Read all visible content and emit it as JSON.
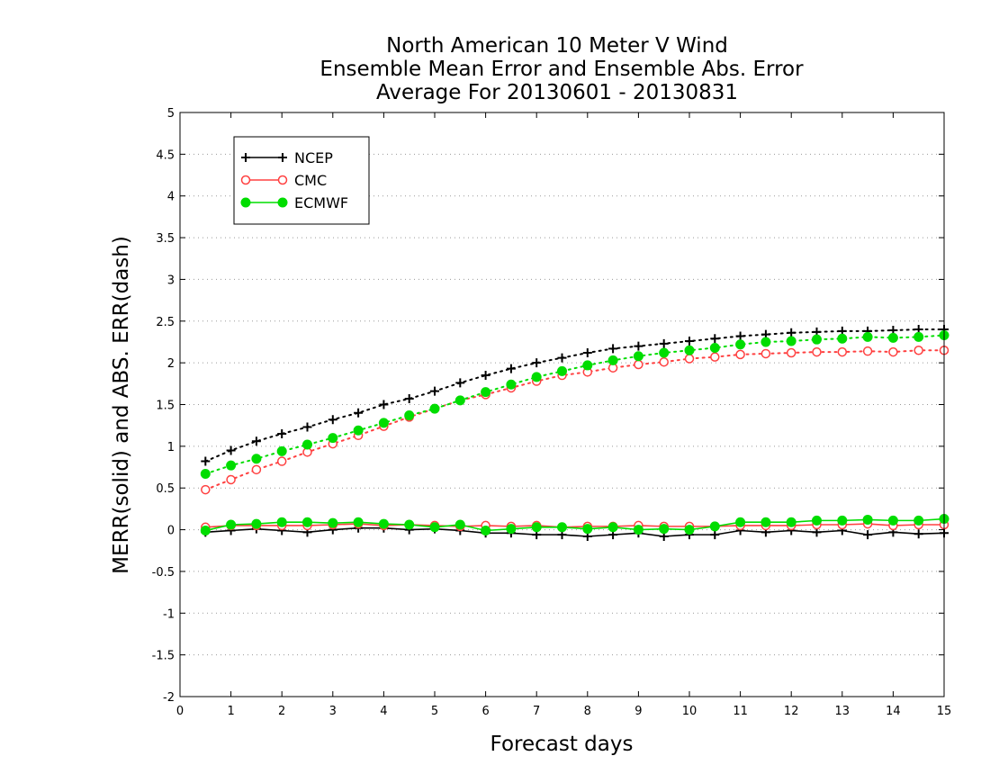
{
  "chart_data": {
    "type": "line",
    "title": [
      "North American 10 Meter V Wind",
      "Ensemble Mean Error and Ensemble Abs. Error",
      "Average For 20130601 - 20130831"
    ],
    "xlabel": "Forecast days",
    "ylabel": "MERR(solid) and ABS. ERR(dash)",
    "xlim": [
      0,
      15
    ],
    "ylim": [
      -2,
      5
    ],
    "xticks": [
      0,
      1,
      2,
      3,
      4,
      5,
      6,
      7,
      8,
      9,
      10,
      11,
      12,
      13,
      14,
      15
    ],
    "yticks": [
      -2,
      -1.5,
      -1,
      -0.5,
      0,
      0.5,
      1,
      1.5,
      2,
      2.5,
      3,
      3.5,
      4,
      4.5,
      5
    ],
    "ytick_labels": [
      "-2",
      "-1.5",
      "-1",
      "-0.5",
      "0",
      "0.5",
      "1",
      "1.5",
      "2",
      "2.5",
      "3",
      "3.5",
      "4",
      "4.5",
      "5"
    ],
    "grid": "horizontal dotted",
    "legend_position": "top-left",
    "x": [
      0.5,
      1,
      1.5,
      2,
      2.5,
      3,
      3.5,
      4,
      4.5,
      5,
      5.5,
      6,
      6.5,
      7,
      7.5,
      8,
      8.5,
      9,
      9.5,
      10,
      10.5,
      11,
      11.5,
      12,
      12.5,
      13,
      13.5,
      14,
      14.5,
      15
    ],
    "series": [
      {
        "name": "NCEP",
        "color": "#000000",
        "marker": "plus",
        "merr": [
          -0.03,
          -0.01,
          0.01,
          -0.01,
          -0.03,
          0.0,
          0.02,
          0.02,
          0.0,
          0.01,
          -0.01,
          -0.04,
          -0.04,
          -0.06,
          -0.06,
          -0.08,
          -0.06,
          -0.04,
          -0.08,
          -0.06,
          -0.06,
          -0.01,
          -0.03,
          -0.01,
          -0.03,
          -0.01,
          -0.06,
          -0.03,
          -0.05,
          -0.04
        ],
        "abs_err": [
          0.82,
          0.95,
          1.06,
          1.15,
          1.23,
          1.32,
          1.4,
          1.5,
          1.57,
          1.66,
          1.76,
          1.85,
          1.93,
          2.0,
          2.06,
          2.12,
          2.17,
          2.2,
          2.23,
          2.26,
          2.29,
          2.32,
          2.34,
          2.36,
          2.37,
          2.38,
          2.38,
          2.39,
          2.4,
          2.4
        ]
      },
      {
        "name": "CMC",
        "color": "#ff4040",
        "marker": "open-circle",
        "merr": [
          0.03,
          0.05,
          0.05,
          0.05,
          0.05,
          0.06,
          0.07,
          0.05,
          0.06,
          0.05,
          0.04,
          0.05,
          0.04,
          0.05,
          0.03,
          0.04,
          0.04,
          0.05,
          0.04,
          0.04,
          0.04,
          0.05,
          0.05,
          0.05,
          0.06,
          0.06,
          0.07,
          0.05,
          0.06,
          0.06
        ],
        "abs_err": [
          0.48,
          0.6,
          0.72,
          0.82,
          0.93,
          1.03,
          1.13,
          1.24,
          1.35,
          1.45,
          1.55,
          1.62,
          1.7,
          1.78,
          1.85,
          1.89,
          1.94,
          1.98,
          2.01,
          2.05,
          2.07,
          2.1,
          2.11,
          2.12,
          2.13,
          2.13,
          2.14,
          2.13,
          2.15,
          2.15
        ]
      },
      {
        "name": "ECMWF",
        "color": "#00dd00",
        "marker": "filled-circle",
        "merr": [
          -0.01,
          0.06,
          0.07,
          0.09,
          0.09,
          0.08,
          0.09,
          0.07,
          0.06,
          0.03,
          0.06,
          -0.01,
          0.01,
          0.03,
          0.03,
          0.01,
          0.03,
          0.0,
          0.01,
          0.0,
          0.04,
          0.09,
          0.09,
          0.09,
          0.11,
          0.11,
          0.12,
          0.11,
          0.11,
          0.13
        ],
        "abs_err": [
          0.67,
          0.77,
          0.85,
          0.94,
          1.02,
          1.1,
          1.19,
          1.28,
          1.37,
          1.45,
          1.55,
          1.65,
          1.74,
          1.83,
          1.9,
          1.97,
          2.03,
          2.08,
          2.12,
          2.15,
          2.18,
          2.22,
          2.25,
          2.26,
          2.28,
          2.29,
          2.31,
          2.3,
          2.31,
          2.33
        ]
      }
    ]
  }
}
